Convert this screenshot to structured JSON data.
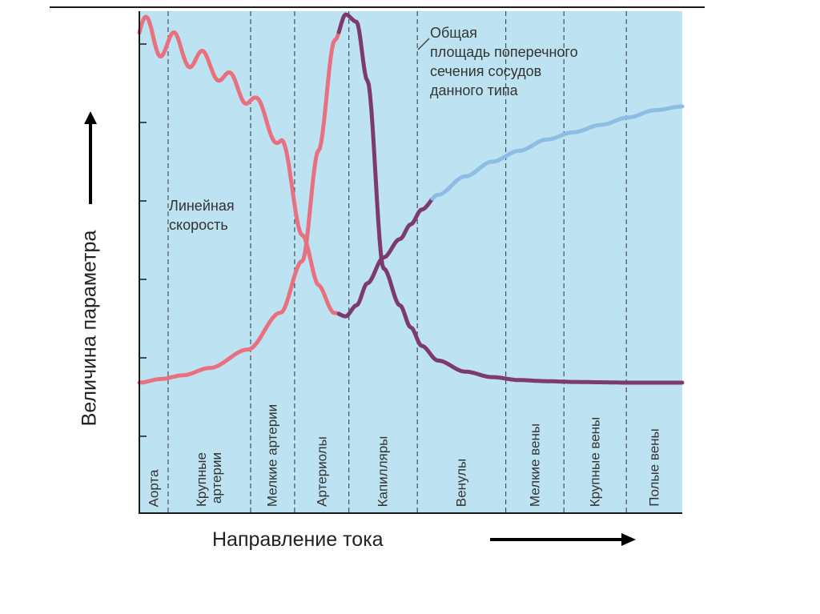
{
  "chart_data": {
    "type": "line",
    "title": "",
    "ylabel": "Величина параметра",
    "xlabel": "Направление тока",
    "categories": [
      {
        "lines": [
          "Аорта"
        ]
      },
      {
        "lines": [
          "Крупные",
          "артерии"
        ]
      },
      {
        "lines": [
          "Мелкие артерии"
        ]
      },
      {
        "lines": [
          "Артериолы"
        ]
      },
      {
        "lines": [
          "Капилляры"
        ]
      },
      {
        "lines": [
          "Венулы"
        ]
      },
      {
        "lines": [
          "Мелкие вены"
        ]
      },
      {
        "lines": [
          "Крупные вены"
        ]
      },
      {
        "lines": [
          "Полые вены"
        ]
      }
    ],
    "x": [
      0.0,
      0.04,
      0.08,
      0.13,
      0.2,
      0.26,
      0.3,
      0.33,
      0.36,
      0.38,
      0.4,
      0.42,
      0.45,
      0.48,
      0.5,
      0.52,
      0.55,
      0.6,
      0.65,
      0.7,
      0.75,
      0.8,
      0.85,
      0.9,
      0.95,
      1.0
    ],
    "series": [
      {
        "name": "Общая площадь поперечного сечения сосудов данного типа",
        "values": [
          0.0,
          0.01,
          0.02,
          0.04,
          0.09,
          0.19,
          0.33,
          0.63,
          0.93,
          1.0,
          0.98,
          0.82,
          0.31,
          0.21,
          0.15,
          0.1,
          0.06,
          0.03,
          0.015,
          0.007,
          0.004,
          0.002,
          0.001,
          0.0,
          0.0,
          0.0
        ],
        "color": "#e8707f",
        "highlight_color": "#7d3a6d"
      },
      {
        "name": "Линейная скорость",
        "values": [
          0.95,
          0.93,
          0.9,
          0.86,
          0.78,
          0.66,
          0.41,
          0.26,
          0.19,
          0.18,
          0.21,
          0.27,
          0.34,
          0.39,
          0.43,
          0.47,
          0.51,
          0.56,
          0.6,
          0.63,
          0.66,
          0.68,
          0.7,
          0.72,
          0.74,
          0.75
        ],
        "color": "#8dbde2",
        "highlight_color": "#7d3a6d",
        "pulsation": "decaying"
      }
    ],
    "ylim": [
      0,
      1
    ],
    "grid": false,
    "legend": "none",
    "y_ticks_count": 5
  },
  "colors": {
    "background": "#bde3f2",
    "arterial": "#e8707f",
    "capillary": "#7d3a6d",
    "venous": "#8dbde2",
    "divider": "#333333",
    "axis": "#1a1a1a"
  }
}
